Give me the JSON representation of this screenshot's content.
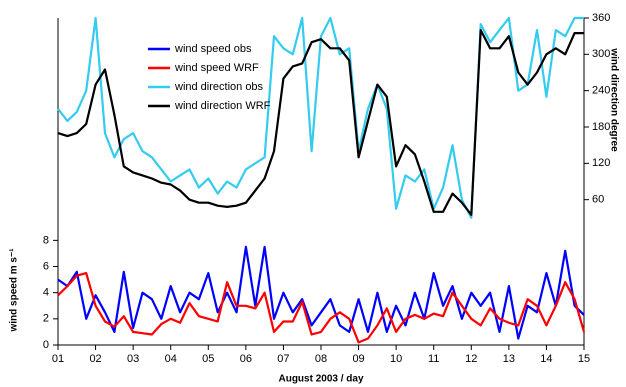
{
  "chart_data": {
    "type": "line",
    "xlabel": "August 2003 / day",
    "ylabel": "wind speed m s⁻¹",
    "y2label": "wind direction degree",
    "xlim": [
      1,
      15
    ],
    "xticks": [
      {
        "value": 1,
        "label": "01"
      },
      {
        "value": 2,
        "label": "02"
      },
      {
        "value": 3,
        "label": "03"
      },
      {
        "value": 4,
        "label": "04"
      },
      {
        "value": 5,
        "label": "05"
      },
      {
        "value": 6,
        "label": "06"
      },
      {
        "value": 7,
        "label": "07"
      },
      {
        "value": 8,
        "label": "08"
      },
      {
        "value": 9,
        "label": "09"
      },
      {
        "value": 10,
        "label": "10"
      },
      {
        "value": 11,
        "label": "11"
      },
      {
        "value": 12,
        "label": "12"
      },
      {
        "value": 13,
        "label": "13"
      },
      {
        "value": 14,
        "label": "14"
      },
      {
        "value": 15,
        "label": "15"
      }
    ],
    "ylim": [
      0,
      25
    ],
    "yticks": [
      0,
      2,
      4,
      6,
      8
    ],
    "y2lim": [
      -180,
      360
    ],
    "y2ticks": [
      60,
      120,
      180,
      240,
      300,
      360
    ],
    "legend": "upper left",
    "x": [
      1,
      1.25,
      1.5,
      1.75,
      2,
      2.25,
      2.5,
      2.75,
      3,
      3.25,
      3.5,
      3.75,
      4,
      4.25,
      4.5,
      4.75,
      5,
      5.25,
      5.5,
      5.75,
      6,
      6.25,
      6.5,
      6.75,
      7,
      7.25,
      7.5,
      7.75,
      8,
      8.25,
      8.5,
      8.75,
      9,
      9.25,
      9.5,
      9.75,
      10,
      10.25,
      10.5,
      10.75,
      11,
      11.25,
      11.5,
      11.75,
      12,
      12.25,
      12.5,
      12.75,
      13,
      13.25,
      13.5,
      13.75,
      14,
      14.25,
      14.5,
      14.75,
      15
    ],
    "series": [
      {
        "name": "wind speed obs",
        "color": "#0000ff",
        "values": [
          5,
          4.5,
          5.6,
          2,
          3.8,
          2.5,
          1,
          5.6,
          1.3,
          4,
          3.5,
          2,
          4.5,
          2.5,
          4,
          3.5,
          5.5,
          2.5,
          4,
          2.5,
          7.5,
          3,
          7.5,
          2,
          4,
          2.5,
          3.5,
          1.5,
          2.5,
          3.5,
          1.5,
          1,
          3.5,
          1,
          4,
          1,
          3,
          1.5,
          4,
          2,
          5.5,
          3,
          4.5,
          2,
          4,
          3,
          4,
          1,
          4.5,
          0.5,
          3,
          2.5,
          5.5,
          3,
          7.2,
          3,
          2.3
        ]
      },
      {
        "name": "wind speed WRF",
        "color": "#ff0000",
        "values": [
          3.8,
          4.5,
          5.3,
          5.5,
          3,
          1.8,
          1.4,
          2.2,
          1,
          0.9,
          0.8,
          1.6,
          2,
          1.7,
          3.2,
          2.2,
          2,
          1.8,
          4.8,
          3,
          3,
          2.8,
          4,
          1,
          1.8,
          1.8,
          3.3,
          0.8,
          1,
          2,
          2.5,
          2,
          0.2,
          0.5,
          1.5,
          2.8,
          1,
          2,
          2.3,
          2,
          2.4,
          2.2,
          4,
          3,
          2,
          1.5,
          2.8,
          2,
          1.7,
          1.5,
          3.5,
          3,
          1.5,
          3,
          4.8,
          3.5,
          1
        ]
      },
      {
        "name": "wind direction obs",
        "color": "#33ccee",
        "axis": "y2",
        "values": [
          210,
          190,
          205,
          240,
          360,
          170,
          130,
          160,
          170,
          140,
          130,
          110,
          90,
          100,
          110,
          80,
          95,
          70,
          90,
          80,
          110,
          120,
          130,
          330,
          310,
          300,
          360,
          140,
          330,
          360,
          300,
          310,
          140,
          210,
          250,
          210,
          45,
          100,
          90,
          110,
          45,
          80,
          150,
          60,
          30,
          350,
          320,
          340,
          360,
          240,
          250,
          340,
          230,
          340,
          330,
          360,
          360
        ]
      },
      {
        "name": "wind direction WRF",
        "color": "#000000",
        "axis": "y2",
        "values": [
          170,
          165,
          170,
          185,
          250,
          275,
          200,
          115,
          105,
          100,
          95,
          88,
          85,
          75,
          60,
          55,
          55,
          50,
          48,
          50,
          55,
          75,
          95,
          140,
          260,
          280,
          285,
          320,
          325,
          310,
          310,
          290,
          130,
          190,
          250,
          230,
          115,
          150,
          135,
          90,
          40,
          40,
          70,
          55,
          35,
          340,
          310,
          310,
          330,
          270,
          250,
          270,
          300,
          310,
          300,
          335,
          335
        ]
      }
    ]
  }
}
